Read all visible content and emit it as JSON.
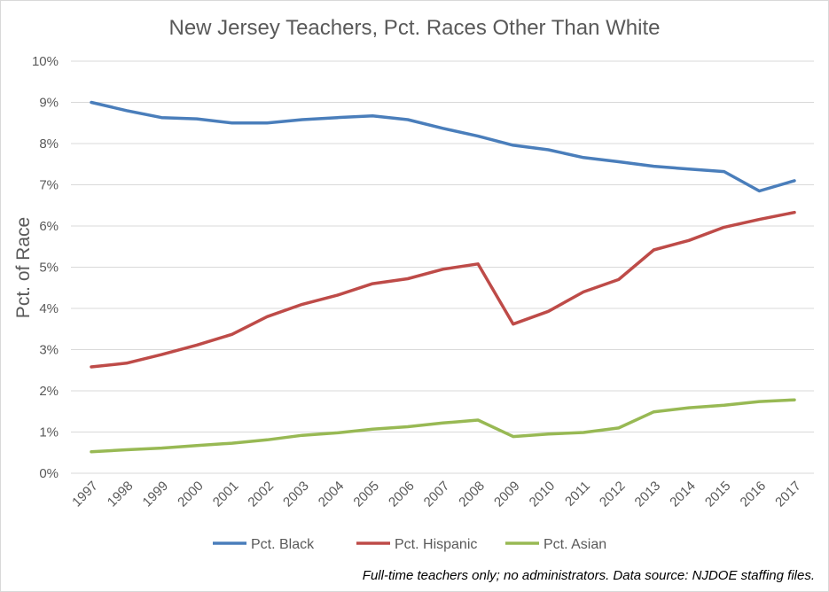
{
  "chart_data": {
    "type": "line",
    "title": "New Jersey Teachers, Pct. Races Other Than White",
    "xlabel": "",
    "ylabel": "Pct. of Race",
    "x": [
      "1997",
      "1998",
      "1999",
      "2000",
      "2001",
      "2002",
      "2003",
      "2004",
      "2005",
      "2006",
      "2007",
      "2008",
      "2009",
      "2010",
      "2011",
      "2012",
      "2013",
      "2014",
      "2015",
      "2016",
      "2017"
    ],
    "ylim": [
      0,
      10
    ],
    "yticks": [
      "0%",
      "1%",
      "2%",
      "3%",
      "4%",
      "5%",
      "6%",
      "7%",
      "8%",
      "9%",
      "10%"
    ],
    "grid": true,
    "legend_position": "bottom",
    "series": [
      {
        "name": "Pct. Black",
        "color": "#4a7ebb",
        "values": [
          9.0,
          8.8,
          8.63,
          8.6,
          8.5,
          8.5,
          8.58,
          8.63,
          8.67,
          8.58,
          8.37,
          8.18,
          7.96,
          7.85,
          7.66,
          7.56,
          7.45,
          7.38,
          7.32,
          6.85,
          7.1
        ]
      },
      {
        "name": "Pct. Hispanic",
        "color": "#be4b48",
        "values": [
          2.58,
          2.67,
          2.88,
          3.11,
          3.37,
          3.8,
          4.1,
          4.32,
          4.6,
          4.72,
          4.95,
          5.08,
          3.62,
          3.93,
          4.4,
          4.7,
          5.42,
          5.65,
          5.97,
          6.16,
          6.33
        ]
      },
      {
        "name": "Pct. Asian",
        "color": "#98b954",
        "values": [
          0.52,
          0.57,
          0.61,
          0.67,
          0.73,
          0.81,
          0.92,
          0.98,
          1.07,
          1.13,
          1.22,
          1.29,
          0.89,
          0.95,
          0.99,
          1.1,
          1.49,
          1.59,
          1.65,
          1.74,
          1.78
        ]
      }
    ],
    "footnote": "Full-time teachers only; no administrators. Data source: NJDOE staffing files."
  }
}
